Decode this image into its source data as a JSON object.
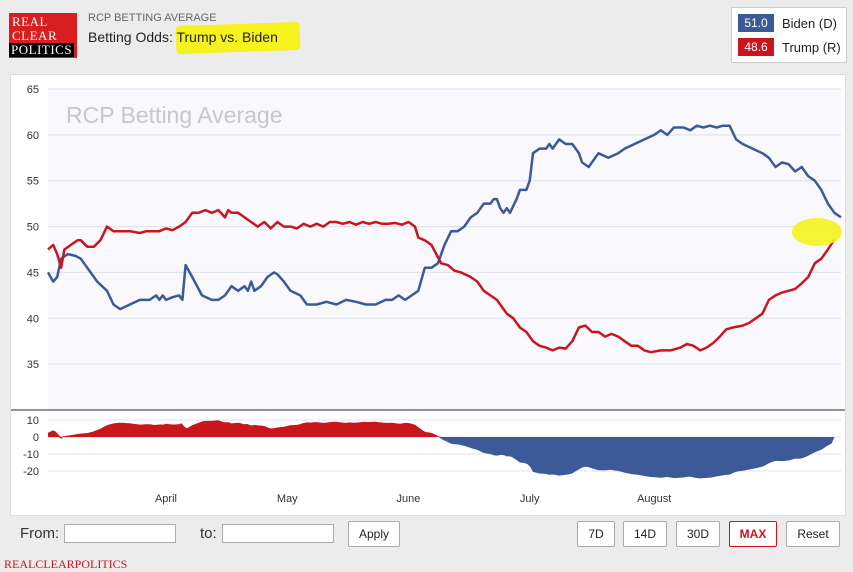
{
  "header": {
    "logo": [
      "REAL",
      "CLEAR",
      "POLITICS"
    ],
    "subtitle": "RCP BETTING AVERAGE",
    "title": "Betting Odds: Trump vs. Biden"
  },
  "legend": [
    {
      "value": "51.0",
      "label": "Biden (D)",
      "color": "#3d5a98"
    },
    {
      "value": "48.6",
      "label": "Trump (R)",
      "color": "#c9161d"
    }
  ],
  "chart_data": {
    "type": "line",
    "title": "RCP Betting Average",
    "ylim": [
      30,
      65
    ],
    "yticks": [
      35,
      40,
      45,
      50,
      55,
      60,
      65
    ],
    "diff_ticks": [
      10,
      0,
      -10,
      -20
    ],
    "months": [
      {
        "label": "April",
        "t": 0.18
      },
      {
        "label": "May",
        "t": 0.365
      },
      {
        "label": "June",
        "t": 0.55
      },
      {
        "label": "July",
        "t": 0.735
      },
      {
        "label": "August",
        "t": 0.925
      }
    ],
    "series": [
      {
        "name": "Biden (D)",
        "color": "#3d5a98",
        "points": [
          [
            0,
            45
          ],
          [
            0.008,
            44
          ],
          [
            0.014,
            44.5
          ],
          [
            0.02,
            46.5
          ],
          [
            0.03,
            47
          ],
          [
            0.042,
            46.8
          ],
          [
            0.05,
            46.5
          ],
          [
            0.06,
            45.5
          ],
          [
            0.075,
            44
          ],
          [
            0.09,
            43
          ],
          [
            0.1,
            41.5
          ],
          [
            0.11,
            41
          ],
          [
            0.125,
            41.5
          ],
          [
            0.14,
            42
          ],
          [
            0.155,
            42
          ],
          [
            0.165,
            42.5
          ],
          [
            0.17,
            42
          ],
          [
            0.175,
            42.5
          ],
          [
            0.18,
            42
          ],
          [
            0.19,
            42.3
          ],
          [
            0.2,
            42.5
          ],
          [
            0.205,
            42
          ],
          [
            0.21,
            45.8
          ],
          [
            0.22,
            44.5
          ],
          [
            0.235,
            42.5
          ],
          [
            0.25,
            42
          ],
          [
            0.26,
            42
          ],
          [
            0.27,
            42.5
          ],
          [
            0.28,
            43.5
          ],
          [
            0.29,
            43
          ],
          [
            0.3,
            43.5
          ],
          [
            0.305,
            43
          ],
          [
            0.31,
            44
          ],
          [
            0.315,
            43
          ],
          [
            0.325,
            43.5
          ],
          [
            0.335,
            44.5
          ],
          [
            0.345,
            45
          ],
          [
            0.35,
            44.8
          ],
          [
            0.36,
            44
          ],
          [
            0.37,
            43
          ],
          [
            0.385,
            42.5
          ],
          [
            0.395,
            41.5
          ],
          [
            0.41,
            41.5
          ],
          [
            0.425,
            41.8
          ],
          [
            0.44,
            41.5
          ],
          [
            0.455,
            42
          ],
          [
            0.47,
            41.8
          ],
          [
            0.485,
            41.5
          ],
          [
            0.5,
            41.5
          ],
          [
            0.515,
            42
          ],
          [
            0.525,
            42
          ],
          [
            0.535,
            42.5
          ],
          [
            0.545,
            42
          ],
          [
            0.555,
            42.5
          ],
          [
            0.565,
            43
          ],
          [
            0.575,
            45.5
          ],
          [
            0.585,
            45.5
          ],
          [
            0.595,
            46
          ],
          [
            0.605,
            48
          ],
          [
            0.615,
            49.5
          ],
          [
            0.625,
            49.5
          ],
          [
            0.635,
            50
          ],
          [
            0.645,
            51
          ],
          [
            0.655,
            51.5
          ],
          [
            0.665,
            52.5
          ],
          [
            0.675,
            52.5
          ],
          [
            0.68,
            53
          ],
          [
            0.685,
            53
          ],
          [
            0.69,
            52
          ],
          [
            0.695,
            51.5
          ],
          [
            0.7,
            52
          ],
          [
            0.705,
            51.5
          ],
          [
            0.715,
            53
          ],
          [
            0.72,
            54
          ],
          [
            0.73,
            54
          ],
          [
            0.735,
            55
          ],
          [
            0.74,
            58
          ],
          [
            0.75,
            58.5
          ],
          [
            0.76,
            58.5
          ],
          [
            0.765,
            59
          ],
          [
            0.77,
            58.5
          ],
          [
            0.775,
            59
          ],
          [
            0.78,
            59.5
          ],
          [
            0.79,
            59
          ],
          [
            0.8,
            59
          ],
          [
            0.81,
            58
          ],
          [
            0.815,
            57
          ],
          [
            0.825,
            56.5
          ],
          [
            0.84,
            58
          ],
          [
            0.855,
            57.5
          ],
          [
            0.87,
            58
          ],
          [
            0.88,
            58.5
          ],
          [
            0.895,
            59
          ],
          [
            0.91,
            59.5
          ],
          [
            0.925,
            60
          ],
          [
            0.935,
            60.5
          ],
          [
            0.945,
            60
          ],
          [
            0.955,
            60.8
          ],
          [
            0.97,
            60.8
          ],
          [
            0.98,
            60.5
          ],
          [
            0.99,
            61
          ],
          [
            1.0,
            60.8
          ],
          [
            1.01,
            61
          ],
          [
            1.02,
            60.8
          ],
          [
            1.03,
            61
          ],
          [
            1.04,
            61
          ],
          [
            1.05,
            59.5
          ],
          [
            1.06,
            59
          ],
          [
            1.075,
            58.5
          ],
          [
            1.09,
            58
          ],
          [
            1.1,
            57.5
          ],
          [
            1.11,
            56.5
          ],
          [
            1.12,
            57
          ],
          [
            1.13,
            56.8
          ],
          [
            1.14,
            56
          ],
          [
            1.15,
            56.5
          ],
          [
            1.16,
            55.5
          ],
          [
            1.17,
            55
          ],
          [
            1.18,
            54
          ],
          [
            1.19,
            52.5
          ],
          [
            1.2,
            51.5
          ],
          [
            1.21,
            51
          ]
        ]
      },
      {
        "name": "Trump (R)",
        "color": "#c9161d",
        "points": [
          [
            0,
            47.5
          ],
          [
            0.008,
            48
          ],
          [
            0.014,
            47
          ],
          [
            0.02,
            45.5
          ],
          [
            0.025,
            47.5
          ],
          [
            0.035,
            48
          ],
          [
            0.045,
            48.5
          ],
          [
            0.05,
            48.5
          ],
          [
            0.06,
            47.8
          ],
          [
            0.07,
            47.8
          ],
          [
            0.08,
            48.5
          ],
          [
            0.09,
            50
          ],
          [
            0.1,
            49.5
          ],
          [
            0.11,
            49.5
          ],
          [
            0.125,
            49.5
          ],
          [
            0.14,
            49.3
          ],
          [
            0.15,
            49.5
          ],
          [
            0.16,
            49.5
          ],
          [
            0.17,
            49.5
          ],
          [
            0.18,
            49.8
          ],
          [
            0.19,
            49.6
          ],
          [
            0.2,
            50
          ],
          [
            0.21,
            50.5
          ],
          [
            0.22,
            51.5
          ],
          [
            0.23,
            51.5
          ],
          [
            0.24,
            51.8
          ],
          [
            0.25,
            51.5
          ],
          [
            0.26,
            51.8
          ],
          [
            0.27,
            51
          ],
          [
            0.275,
            51.8
          ],
          [
            0.28,
            51.5
          ],
          [
            0.29,
            51.5
          ],
          [
            0.3,
            51
          ],
          [
            0.31,
            50.5
          ],
          [
            0.32,
            50
          ],
          [
            0.33,
            50.5
          ],
          [
            0.34,
            49.8
          ],
          [
            0.35,
            50.5
          ],
          [
            0.36,
            50
          ],
          [
            0.37,
            50
          ],
          [
            0.38,
            49.8
          ],
          [
            0.39,
            50.3
          ],
          [
            0.4,
            50
          ],
          [
            0.41,
            50.3
          ],
          [
            0.42,
            50
          ],
          [
            0.43,
            50.5
          ],
          [
            0.44,
            50.5
          ],
          [
            0.45,
            50.3
          ],
          [
            0.46,
            50.5
          ],
          [
            0.47,
            50.2
          ],
          [
            0.48,
            50.5
          ],
          [
            0.49,
            50.3
          ],
          [
            0.5,
            50.5
          ],
          [
            0.51,
            50.3
          ],
          [
            0.52,
            50.3
          ],
          [
            0.53,
            50.4
          ],
          [
            0.54,
            50.2
          ],
          [
            0.55,
            50.5
          ],
          [
            0.56,
            50
          ],
          [
            0.565,
            48.8
          ],
          [
            0.575,
            48.5
          ],
          [
            0.585,
            48
          ],
          [
            0.6,
            46
          ],
          [
            0.61,
            45.8
          ],
          [
            0.62,
            45.2
          ],
          [
            0.63,
            45
          ],
          [
            0.645,
            44.5
          ],
          [
            0.655,
            44
          ],
          [
            0.665,
            43
          ],
          [
            0.675,
            42.5
          ],
          [
            0.685,
            42
          ],
          [
            0.69,
            41.5
          ],
          [
            0.695,
            41
          ],
          [
            0.7,
            40.5
          ],
          [
            0.71,
            40
          ],
          [
            0.72,
            39
          ],
          [
            0.73,
            38.5
          ],
          [
            0.74,
            37.5
          ],
          [
            0.75,
            37
          ],
          [
            0.76,
            36.8
          ],
          [
            0.77,
            36.5
          ],
          [
            0.78,
            36.8
          ],
          [
            0.79,
            36.7
          ],
          [
            0.8,
            37.5
          ],
          [
            0.81,
            39
          ],
          [
            0.82,
            39.2
          ],
          [
            0.83,
            38.5
          ],
          [
            0.84,
            38.5
          ],
          [
            0.85,
            38
          ],
          [
            0.86,
            38.3
          ],
          [
            0.87,
            38
          ],
          [
            0.88,
            37.5
          ],
          [
            0.89,
            37
          ],
          [
            0.9,
            37
          ],
          [
            0.91,
            36.5
          ],
          [
            0.92,
            36.3
          ],
          [
            0.935,
            36.5
          ],
          [
            0.95,
            36.5
          ],
          [
            0.965,
            36.8
          ],
          [
            0.975,
            37.2
          ],
          [
            0.985,
            37
          ],
          [
            0.995,
            36.5
          ],
          [
            1.005,
            36.8
          ],
          [
            1.015,
            37.3
          ],
          [
            1.025,
            38
          ],
          [
            1.035,
            38.8
          ],
          [
            1.045,
            39
          ],
          [
            1.06,
            39.2
          ],
          [
            1.07,
            39.5
          ],
          [
            1.08,
            40
          ],
          [
            1.09,
            40.5
          ],
          [
            1.1,
            42
          ],
          [
            1.11,
            42.5
          ],
          [
            1.12,
            42.8
          ],
          [
            1.13,
            43
          ],
          [
            1.14,
            43.2
          ],
          [
            1.15,
            43.8
          ],
          [
            1.16,
            44.5
          ],
          [
            1.17,
            46
          ],
          [
            1.18,
            46.5
          ],
          [
            1.19,
            47.5
          ],
          [
            1.2,
            48.6
          ]
        ]
      }
    ]
  }
}
